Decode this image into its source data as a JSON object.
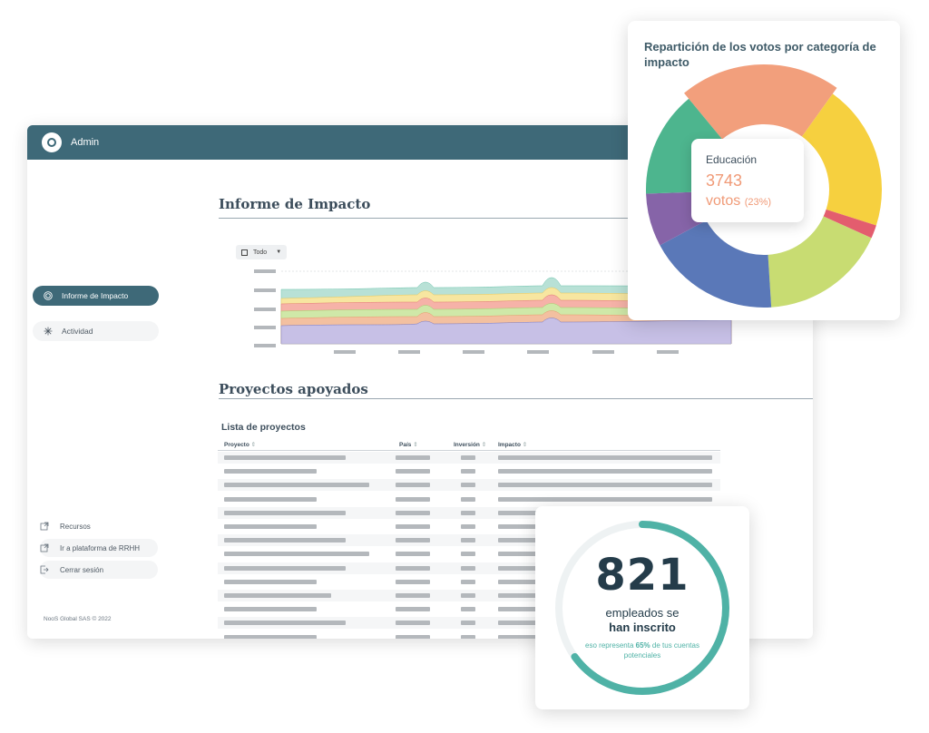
{
  "app": {
    "brand": "Admin"
  },
  "sidebar": {
    "items": [
      {
        "label": "Informe de Impacto",
        "icon": "target-icon"
      },
      {
        "label": "Actividad",
        "icon": "sparkle-icon"
      }
    ],
    "links": [
      {
        "label": "Recursos",
        "icon": "external-link-icon"
      },
      {
        "label": "Ir a plataforma de RRHH",
        "icon": "external-link-icon"
      },
      {
        "label": "Cerrar sesión",
        "icon": "logout-icon"
      }
    ],
    "copyright": "NooS Global SAS © 2022"
  },
  "impact": {
    "title": "Informe de Impacto",
    "filter": "Todo"
  },
  "projects": {
    "title": "Proyectos apoyados",
    "list_title": "Lista de proyectos",
    "columns": [
      "Proyecto",
      "País",
      "Inversión",
      "Impacto"
    ]
  },
  "donut": {
    "title": "Repartición de los votos por categoría de impacto",
    "tooltip": {
      "category": "Educación",
      "value": "3743",
      "unit": "votos",
      "percent": "(23%)"
    }
  },
  "chart_data": [
    {
      "type": "area",
      "title": "",
      "series_colors": [
        "#f6b2a8",
        "#f7e6a0",
        "#cfe8a8",
        "#f3c0a0",
        "#b8e1d6",
        "#c7c0e6"
      ]
    },
    {
      "type": "pie",
      "title": "Repartición de los votos por categoría de impacto",
      "categories": [
        "Educación",
        "",
        "",
        "",
        "",
        "",
        ""
      ],
      "values": [
        23,
        22,
        2,
        19,
        20,
        8,
        16
      ],
      "colors": [
        "#f29f7c",
        "#f6d03f",
        "#e35d6e",
        "#c8dc72",
        "#5a78b8",
        "#8664a8",
        "#4db58e"
      ]
    }
  ],
  "stat": {
    "number": "821",
    "line1": "empleados se",
    "line2": "han inscrito",
    "note_pre": "eso representa",
    "note_pct": "65%",
    "note_post": "de tus cuentas potenciales",
    "progress": 0.65,
    "color": "#4fb2a6"
  }
}
